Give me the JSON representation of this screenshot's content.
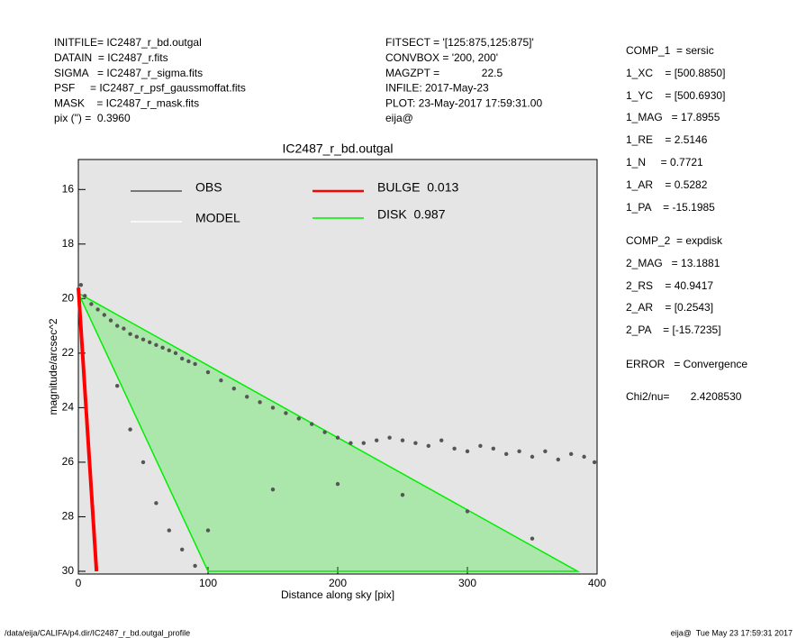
{
  "header": {
    "left": [
      "INITFILE= IC2487_r_bd.outgal",
      "DATAIN  = IC2487_r.fits",
      "SIGMA   = IC2487_r_sigma.fits",
      "PSF     = IC2487_r_psf_gaussmoffat.fits",
      "MASK    = IC2487_r_mask.fits",
      "pix (\") =  0.3960"
    ],
    "middle": [
      "FITSECT = '[125:875,125:875]'",
      "CONVBOX = '200, 200'",
      "MAGZPT =              22.5",
      "INFILE: 2017-May-23",
      "PLOT: 23-May-2017 17:59:31.00",
      "eija@"
    ],
    "right": [
      "COMP_1  = sersic",
      "1_XC    = [500.8850]",
      "1_YC    = [500.6930]",
      "1_MAG   = 17.8955",
      "1_RE    = 2.5146",
      "1_N     = 0.7721",
      "1_AR    = 0.5282",
      "1_PA    = -15.1985",
      "COMP_2  = expdisk",
      "2_MAG   = 13.1881",
      "2_RS    = 40.9417",
      "2_AR    = [0.2543]",
      "2_PA    = [-15.7235]",
      "ERROR   = Convergence",
      "Chi2/nu=       2.4208530"
    ]
  },
  "footer": {
    "left": "/data/eija/CALIFA/p4.dir/IC2487_r_bd.outgal_profile",
    "right": "eija@  Tue May 23 17:59:31 2017"
  },
  "chart_data": {
    "type": "scatter",
    "title": "IC2487_r_bd.outgal",
    "xlabel": "Distance along sky [pix]",
    "ylabel": "magnitude/arcsec^2",
    "xlim": [
      0,
      400
    ],
    "xticks": [
      0,
      100,
      200,
      300,
      400
    ],
    "ylim": [
      30.1,
      14.9
    ],
    "yticks": [
      16,
      18,
      20,
      22,
      24,
      26,
      28,
      30
    ],
    "series": [
      {
        "name": "OBS",
        "color": "#555555",
        "x": [
          2,
          5,
          10,
          15,
          20,
          25,
          30,
          35,
          40,
          45,
          50,
          55,
          60,
          65,
          70,
          75,
          80,
          85,
          90,
          100,
          110,
          120,
          130,
          140,
          150,
          160,
          170,
          180,
          190,
          200,
          210,
          220,
          230,
          240,
          250,
          260,
          270,
          280,
          290,
          300,
          310,
          320,
          330,
          340,
          350,
          360,
          370,
          380,
          390,
          398,
          30,
          40,
          50,
          60,
          70,
          80,
          90,
          100,
          150,
          200,
          250,
          300,
          350
        ],
        "values": [
          19.5,
          19.9,
          20.2,
          20.4,
          20.6,
          20.8,
          21.0,
          21.1,
          21.3,
          21.4,
          21.5,
          21.6,
          21.7,
          21.8,
          21.9,
          22.0,
          22.2,
          22.3,
          22.4,
          22.7,
          23.0,
          23.3,
          23.6,
          23.8,
          24.0,
          24.2,
          24.4,
          24.6,
          24.9,
          25.1,
          25.3,
          25.3,
          25.2,
          25.1,
          25.2,
          25.3,
          25.4,
          25.2,
          25.5,
          25.6,
          25.4,
          25.5,
          25.7,
          25.6,
          25.8,
          25.6,
          25.9,
          25.7,
          25.8,
          26.0,
          23.2,
          24.8,
          26.0,
          27.5,
          28.5,
          29.2,
          29.8,
          28.5,
          27.0,
          26.8,
          27.2,
          27.8,
          28.8
        ]
      },
      {
        "name": "MODEL",
        "color": "#ffffff"
      },
      {
        "name": "BULGE  0.013",
        "color": "#ff0000",
        "x": [
          0,
          14
        ],
        "values": [
          19.6,
          30
        ]
      },
      {
        "name": "DISK  0.987",
        "color": "#00ee00",
        "x": [
          100,
          0,
          385
        ],
        "values": [
          30,
          19.8,
          30
        ]
      }
    ]
  }
}
